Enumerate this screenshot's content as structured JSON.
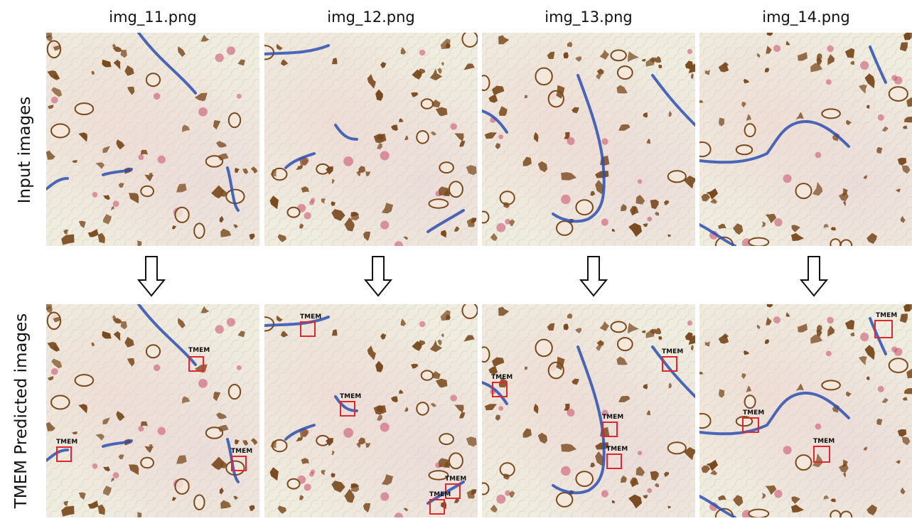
{
  "columns": [
    {
      "title": "img_11.png"
    },
    {
      "title": "img_12.png"
    },
    {
      "title": "img_13.png"
    },
    {
      "title": "img_14.png"
    }
  ],
  "rows": {
    "input_label": "Input images",
    "predicted_label": "TMEM Predicted images"
  },
  "detection_label": "TMEM",
  "detections_per_image": [
    3,
    5,
    4,
    3
  ],
  "colors": {
    "box": "#e0282c",
    "vessel": "#2d4fb0",
    "cell": "#7a4a1e",
    "pink": "#c94a6c"
  }
}
